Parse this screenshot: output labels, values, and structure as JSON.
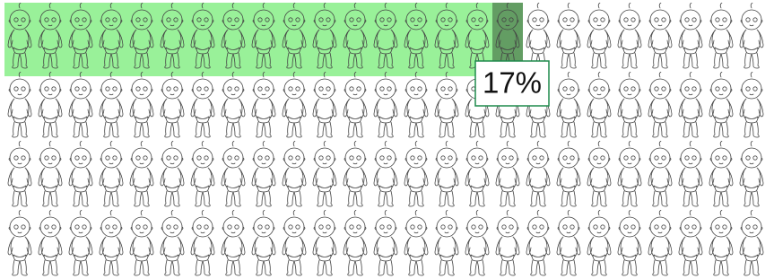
{
  "chart_data": {
    "type": "pictogram",
    "values": [
      17
    ],
    "value_labels": [
      "17%"
    ],
    "color": "#8ef08e"
  }
}
